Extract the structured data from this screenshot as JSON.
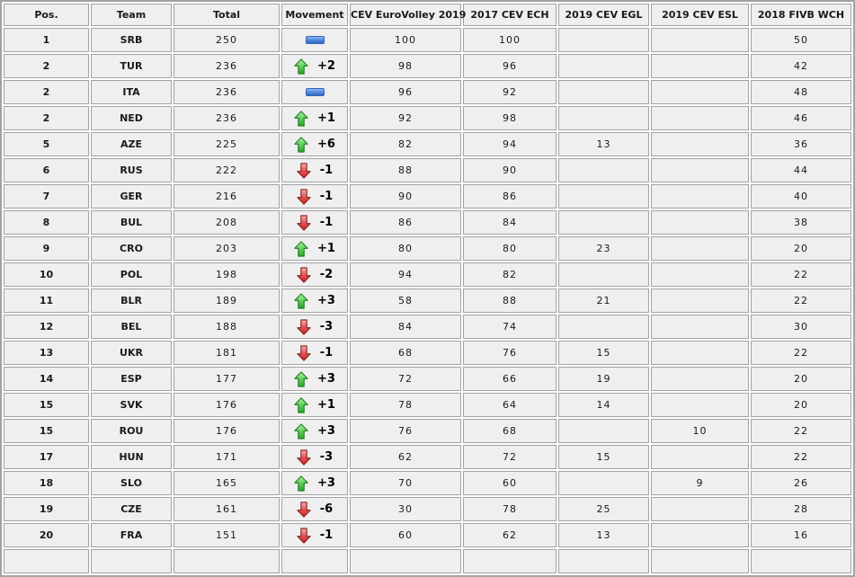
{
  "table": {
    "columns": [
      {
        "key": "pos",
        "label": "Pos."
      },
      {
        "key": "team",
        "label": "Team"
      },
      {
        "key": "total",
        "label": "Total"
      },
      {
        "key": "movement",
        "label": "Movement"
      },
      {
        "key": "euro2019",
        "label": "CEV EuroVolley 2019"
      },
      {
        "key": "ech2017",
        "label": "2017 CEV ECH"
      },
      {
        "key": "egl2019",
        "label": "2019 CEV EGL"
      },
      {
        "key": "esl2019",
        "label": "2019 CEV ESL"
      },
      {
        "key": "wch2018",
        "label": "2018 FIVB WCH"
      }
    ],
    "colors": {
      "cell_background": "#efefef",
      "border": "#a2a2a2",
      "movement_up_green": "#2ca02c",
      "movement_down_red": "#c22525",
      "movement_same_blue": "#2f66c6",
      "text": "#1a1a1a"
    },
    "rows": [
      {
        "pos": "1",
        "team": "SRB",
        "total": "250",
        "movement_dir": "same",
        "movement_value": "",
        "euro2019": "100",
        "ech2017": "100",
        "egl2019": "",
        "esl2019": "",
        "wch2018": "50"
      },
      {
        "pos": "2",
        "team": "TUR",
        "total": "236",
        "movement_dir": "up",
        "movement_value": "+2",
        "euro2019": "98",
        "ech2017": "96",
        "egl2019": "",
        "esl2019": "",
        "wch2018": "42"
      },
      {
        "pos": "2",
        "team": "ITA",
        "total": "236",
        "movement_dir": "same",
        "movement_value": "",
        "euro2019": "96",
        "ech2017": "92",
        "egl2019": "",
        "esl2019": "",
        "wch2018": "48"
      },
      {
        "pos": "2",
        "team": "NED",
        "total": "236",
        "movement_dir": "up",
        "movement_value": "+1",
        "euro2019": "92",
        "ech2017": "98",
        "egl2019": "",
        "esl2019": "",
        "wch2018": "46"
      },
      {
        "pos": "5",
        "team": "AZE",
        "total": "225",
        "movement_dir": "up",
        "movement_value": "+6",
        "euro2019": "82",
        "ech2017": "94",
        "egl2019": "13",
        "esl2019": "",
        "wch2018": "36"
      },
      {
        "pos": "6",
        "team": "RUS",
        "total": "222",
        "movement_dir": "down",
        "movement_value": "-1",
        "euro2019": "88",
        "ech2017": "90",
        "egl2019": "",
        "esl2019": "",
        "wch2018": "44"
      },
      {
        "pos": "7",
        "team": "GER",
        "total": "216",
        "movement_dir": "down",
        "movement_value": "-1",
        "euro2019": "90",
        "ech2017": "86",
        "egl2019": "",
        "esl2019": "",
        "wch2018": "40"
      },
      {
        "pos": "8",
        "team": "BUL",
        "total": "208",
        "movement_dir": "down",
        "movement_value": "-1",
        "euro2019": "86",
        "ech2017": "84",
        "egl2019": "",
        "esl2019": "",
        "wch2018": "38"
      },
      {
        "pos": "9",
        "team": "CRO",
        "total": "203",
        "movement_dir": "up",
        "movement_value": "+1",
        "euro2019": "80",
        "ech2017": "80",
        "egl2019": "23",
        "esl2019": "",
        "wch2018": "20"
      },
      {
        "pos": "10",
        "team": "POL",
        "total": "198",
        "movement_dir": "down",
        "movement_value": "-2",
        "euro2019": "94",
        "ech2017": "82",
        "egl2019": "",
        "esl2019": "",
        "wch2018": "22"
      },
      {
        "pos": "11",
        "team": "BLR",
        "total": "189",
        "movement_dir": "up",
        "movement_value": "+3",
        "euro2019": "58",
        "ech2017": "88",
        "egl2019": "21",
        "esl2019": "",
        "wch2018": "22"
      },
      {
        "pos": "12",
        "team": "BEL",
        "total": "188",
        "movement_dir": "down",
        "movement_value": "-3",
        "euro2019": "84",
        "ech2017": "74",
        "egl2019": "",
        "esl2019": "",
        "wch2018": "30"
      },
      {
        "pos": "13",
        "team": "UKR",
        "total": "181",
        "movement_dir": "down",
        "movement_value": "-1",
        "euro2019": "68",
        "ech2017": "76",
        "egl2019": "15",
        "esl2019": "",
        "wch2018": "22"
      },
      {
        "pos": "14",
        "team": "ESP",
        "total": "177",
        "movement_dir": "up",
        "movement_value": "+3",
        "euro2019": "72",
        "ech2017": "66",
        "egl2019": "19",
        "esl2019": "",
        "wch2018": "20"
      },
      {
        "pos": "15",
        "team": "SVK",
        "total": "176",
        "movement_dir": "up",
        "movement_value": "+1",
        "euro2019": "78",
        "ech2017": "64",
        "egl2019": "14",
        "esl2019": "",
        "wch2018": "20"
      },
      {
        "pos": "15",
        "team": "ROU",
        "total": "176",
        "movement_dir": "up",
        "movement_value": "+3",
        "euro2019": "76",
        "ech2017": "68",
        "egl2019": "",
        "esl2019": "10",
        "wch2018": "22"
      },
      {
        "pos": "17",
        "team": "HUN",
        "total": "171",
        "movement_dir": "down",
        "movement_value": "-3",
        "euro2019": "62",
        "ech2017": "72",
        "egl2019": "15",
        "esl2019": "",
        "wch2018": "22"
      },
      {
        "pos": "18",
        "team": "SLO",
        "total": "165",
        "movement_dir": "up",
        "movement_value": "+3",
        "euro2019": "70",
        "ech2017": "60",
        "egl2019": "",
        "esl2019": "9",
        "wch2018": "26"
      },
      {
        "pos": "19",
        "team": "CZE",
        "total": "161",
        "movement_dir": "down",
        "movement_value": "-6",
        "euro2019": "30",
        "ech2017": "78",
        "egl2019": "25",
        "esl2019": "",
        "wch2018": "28"
      },
      {
        "pos": "20",
        "team": "FRA",
        "total": "151",
        "movement_dir": "down",
        "movement_value": "-1",
        "euro2019": "60",
        "ech2017": "62",
        "egl2019": "13",
        "esl2019": "",
        "wch2018": "16"
      }
    ]
  }
}
